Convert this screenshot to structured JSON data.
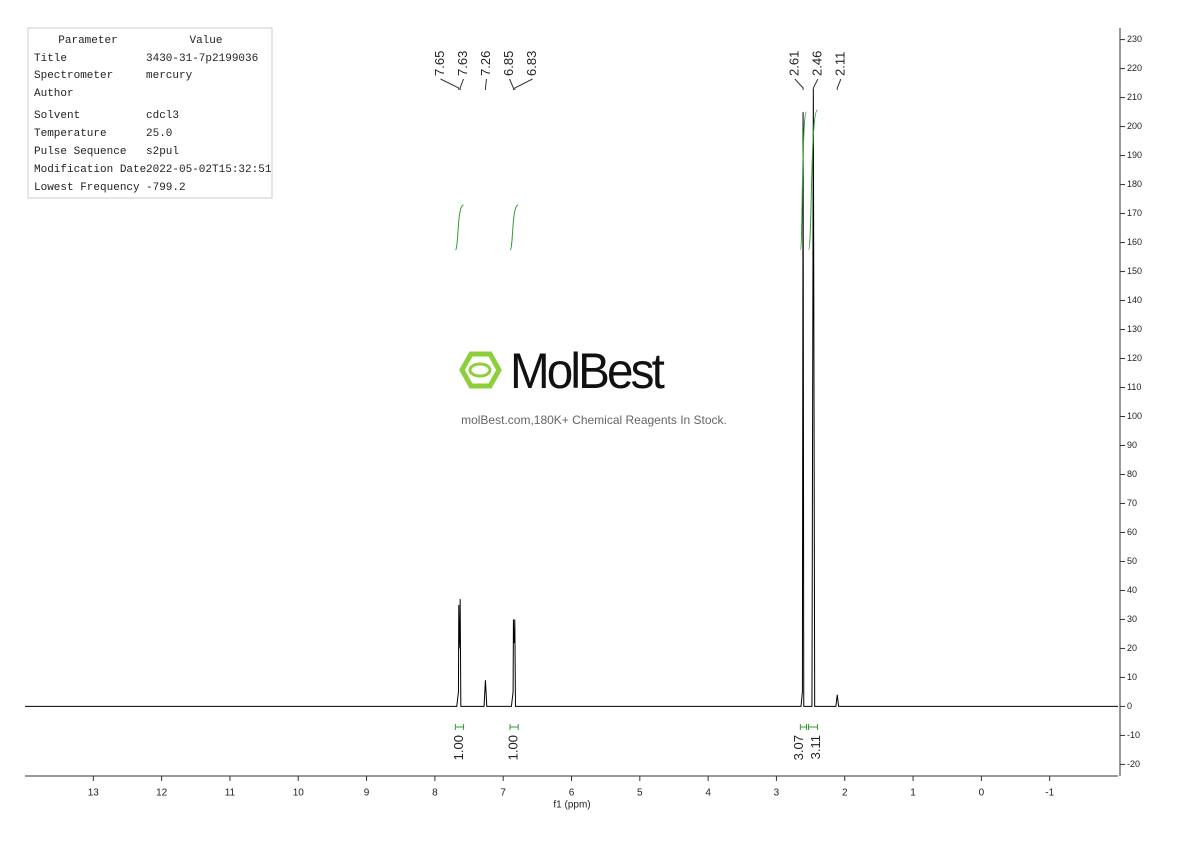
{
  "parameters": {
    "header": [
      "Parameter",
      "Value"
    ],
    "rows": [
      [
        "Title",
        "3430-31-7p2199036"
      ],
      [
        "Spectrometer",
        "mercury"
      ],
      [
        "Author"
      ],
      [
        "Solvent",
        "cdcl3"
      ],
      [
        "Temperature",
        "25.0"
      ],
      [
        "Pulse Sequence",
        "s2pul"
      ],
      [
        "Modification Date",
        "2022-05-02T15:32:51"
      ],
      [
        "Lowest Frequency",
        "-799.2"
      ]
    ]
  },
  "watermark": {
    "logo": "MolBest",
    "tagline": "molBest.com,180K+ Chemical Reagents In Stock."
  },
  "chart_data": {
    "type": "line",
    "x_label": "f1 (ppm)",
    "color": "#000000",
    "integral_color": "#2ca02c",
    "x": [
      14,
      7.68,
      7.655,
      7.65,
      7.645,
      7.635,
      7.63,
      7.62,
      7.28,
      7.26,
      7.24,
      6.88,
      6.855,
      6.85,
      6.845,
      6.835,
      6.83,
      6.82,
      2.64,
      2.62,
      2.61,
      2.6,
      2.48,
      2.46,
      2.44,
      2.13,
      2.11,
      2.09,
      -2
    ],
    "values": [
      0,
      0,
      5,
      35,
      20,
      25,
      37,
      0,
      0,
      9,
      0,
      0,
      5,
      30,
      22,
      22,
      30,
      0,
      0,
      5,
      205,
      0,
      0,
      213,
      0,
      0,
      4,
      0,
      0
    ],
    "xlim": [
      14,
      -2
    ],
    "xticks": [
      13,
      12,
      11,
      10,
      9,
      8,
      7,
      6,
      5,
      4,
      3,
      2,
      1,
      0,
      -1
    ],
    "ylim": [
      -24,
      234
    ],
    "yticks": [
      -20,
      -10,
      0,
      10,
      20,
      30,
      40,
      50,
      60,
      70,
      80,
      90,
      100,
      110,
      120,
      130,
      140,
      150,
      160,
      170,
      180,
      190,
      200,
      210,
      220,
      230
    ],
    "peak_labels": [
      7.65,
      7.63,
      7.26,
      6.85,
      6.83,
      2.61,
      2.46,
      2.11
    ],
    "integrals": {
      "ranges": [
        [
          7.7,
          7.58
        ],
        [
          6.9,
          6.78
        ],
        [
          2.65,
          2.56
        ],
        [
          2.53,
          2.4
        ]
      ],
      "values": [
        1,
        1,
        3.07,
        3.11
      ],
      "value_labels": [
        "1.00",
        "1.00",
        "3.07",
        "3.11"
      ]
    }
  }
}
